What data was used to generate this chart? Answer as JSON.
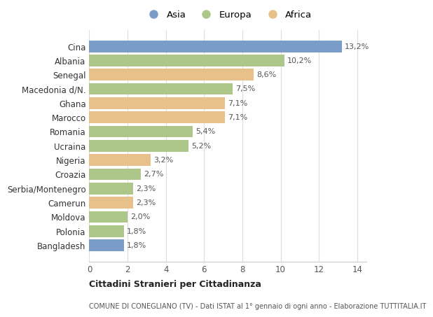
{
  "categories": [
    "Bangladesh",
    "Polonia",
    "Moldova",
    "Camerun",
    "Serbia/Montenegro",
    "Croazia",
    "Nigeria",
    "Ucraina",
    "Romania",
    "Marocco",
    "Ghana",
    "Macedonia d/N.",
    "Senegal",
    "Albania",
    "Cina"
  ],
  "values": [
    1.8,
    1.8,
    2.0,
    2.3,
    2.3,
    2.7,
    3.2,
    5.2,
    5.4,
    7.1,
    7.1,
    7.5,
    8.6,
    10.2,
    13.2
  ],
  "continents": [
    "Asia",
    "Europa",
    "Europa",
    "Africa",
    "Europa",
    "Europa",
    "Africa",
    "Europa",
    "Europa",
    "Africa",
    "Africa",
    "Europa",
    "Africa",
    "Europa",
    "Asia"
  ],
  "colors": {
    "Asia": "#7a9cc9",
    "Europa": "#adc78a",
    "Africa": "#e8c08a"
  },
  "title1": "Cittadini Stranieri per Cittadinanza",
  "title2": "COMUNE DI CONEGLIANO (TV) - Dati ISTAT al 1° gennaio di ogni anno - Elaborazione TUTTITALIA.IT",
  "legend_labels": [
    "Asia",
    "Europa",
    "Africa"
  ],
  "xlim": [
    0,
    14.5
  ],
  "xticks": [
    0,
    2,
    4,
    6,
    8,
    10,
    12,
    14
  ],
  "bar_height": 0.82,
  "background_color": "#ffffff",
  "grid_color": "#dddddd"
}
